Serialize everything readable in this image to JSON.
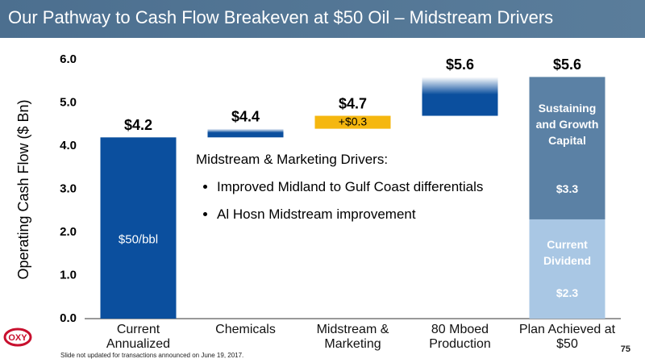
{
  "header": {
    "title": "Our Pathway to Cash Flow Breakeven at $50 Oil – Midstream Drivers"
  },
  "chart_data": {
    "type": "waterfall",
    "ylabel": "Operating Cash Flow ($ Bn)",
    "ylim": [
      0,
      6
    ],
    "yticks": [
      {
        "value": 0,
        "label": "0.0"
      },
      {
        "value": 1,
        "label": "1.0"
      },
      {
        "value": 2,
        "label": "2.0"
      },
      {
        "value": 3,
        "label": "3.0"
      },
      {
        "value": 4,
        "label": "4.0"
      },
      {
        "value": 5,
        "label": "5.0"
      },
      {
        "value": 6,
        "label": "6.0"
      }
    ],
    "categories": [
      "Current Annualized",
      "Chemicals",
      "Midstream & Marketing",
      "80 Mboed Production",
      "Plan Achieved at $50"
    ],
    "steps": [
      {
        "value": 4.2,
        "color": "#0b4f9e",
        "annotation": "$50/bbl"
      },
      {
        "value": 0.2,
        "color": "#0b4f9e",
        "fade": true
      },
      {
        "value": 0.3,
        "color": "#f5b70f",
        "value_label": "+$0.3"
      },
      {
        "value": 0.9,
        "color": "#0b4f9e",
        "fade": true
      }
    ],
    "final_stack": [
      {
        "name": "Current Dividend",
        "value": 2.3,
        "value_label": "$2.3",
        "color": "#a9c7e4"
      },
      {
        "name": "Sustaining and Growth Capital",
        "value": 3.3,
        "value_label": "$3.3",
        "color": "#5b81a5"
      }
    ],
    "totals": [
      4.2,
      4.4,
      4.7,
      5.6,
      5.6
    ],
    "total_labels": [
      "$4.2",
      "$4.4",
      "$4.7",
      "$5.6",
      "$5.6"
    ]
  },
  "callout": {
    "heading": "Midstream & Marketing Drivers:",
    "bullets": [
      "Improved Midland to Gulf Coast differentials",
      "Al Hosn Midstream improvement"
    ]
  },
  "footnote": "Slide not updated for transactions announced on June 19, 2017.",
  "page_number": "75",
  "logo": "OXY"
}
